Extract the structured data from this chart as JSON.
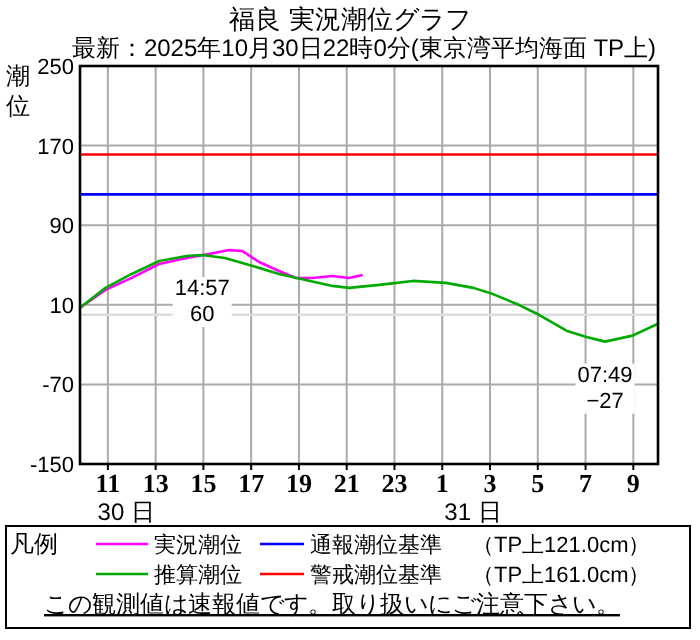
{
  "chart_data": {
    "type": "line",
    "title": "福良 実況潮位グラフ",
    "subtitle": "最新：2025年10月30日22時0分(東京湾平均海面 TP上)",
    "ylabel": "潮位",
    "legend_title": "凡例",
    "xlim": [
      "2025-10-30T09:50",
      "2025-10-31T10:02"
    ],
    "ylim": [
      -150,
      250
    ],
    "xticks": [
      {
        "value": "2025-10-30T11:00",
        "label": "11"
      },
      {
        "value": "2025-10-30T13:00",
        "label": "13"
      },
      {
        "value": "2025-10-30T15:00",
        "label": "15"
      },
      {
        "value": "2025-10-30T17:00",
        "label": "17"
      },
      {
        "value": "2025-10-30T19:00",
        "label": "19"
      },
      {
        "value": "2025-10-30T21:00",
        "label": "21"
      },
      {
        "value": "2025-10-30T23:00",
        "label": "23"
      },
      {
        "value": "2025-10-31T01:00",
        "label": "1"
      },
      {
        "value": "2025-10-31T03:00",
        "label": "3"
      },
      {
        "value": "2025-10-31T05:00",
        "label": "5"
      },
      {
        "value": "2025-10-31T07:00",
        "label": "7"
      },
      {
        "value": "2025-10-31T09:00",
        "label": "9"
      }
    ],
    "yticks": [
      -150,
      -70,
      10,
      90,
      170,
      250
    ],
    "grid": true,
    "legend": "bottom",
    "series": [
      {
        "name": "実況潮位",
        "color": "#ff00ff",
        "x": [
          "2025-10-30T09:50",
          "2025-10-30T10:54",
          "2025-10-30T12:00",
          "2025-10-30T13:09",
          "2025-10-30T14:18",
          "2025-10-30T15:14",
          "2025-10-30T16:05",
          "2025-10-30T16:38",
          "2025-10-30T17:20",
          "2025-10-30T18:10",
          "2025-10-30T18:52",
          "2025-10-30T19:34",
          "2025-10-30T20:24",
          "2025-10-30T21:06",
          "2025-10-30T21:40"
        ],
        "values": [
          7,
          25,
          37,
          51,
          57,
          61,
          65,
          64,
          53,
          44,
          37,
          37,
          39,
          37,
          40
        ]
      },
      {
        "name": "推算潮位",
        "color": "#00aa00",
        "x": [
          "2025-10-30T09:50",
          "2025-10-30T10:54",
          "2025-10-30T12:00",
          "2025-10-30T13:09",
          "2025-10-30T14:18",
          "2025-10-30T14:57",
          "2025-10-30T15:54",
          "2025-10-30T17:04",
          "2025-10-30T18:10",
          "2025-10-30T19:17",
          "2025-10-30T20:24",
          "2025-10-30T21:06",
          "2025-10-30T22:22",
          "2025-10-30T23:46",
          "2025-10-31T01:09",
          "2025-10-31T02:18",
          "2025-10-31T03:06",
          "2025-10-31T04:12",
          "2025-10-31T05:03",
          "2025-10-31T06:12",
          "2025-10-31T07:00",
          "2025-10-31T07:49",
          "2025-10-31T08:58",
          "2025-10-31T10:02"
        ],
        "values": [
          7,
          27,
          41,
          54,
          59,
          60,
          57,
          49,
          41,
          35,
          29,
          27,
          30,
          34,
          32,
          27,
          21,
          10,
          0,
          -16,
          -22,
          -27,
          -21,
          -9
        ]
      }
    ],
    "ref_lines": [
      {
        "axis": "y",
        "value": 121,
        "label": "通報潮位基準",
        "color": "#0000ff"
      },
      {
        "axis": "y",
        "value": 161,
        "label": "警戒潮位基準",
        "color": "#ff0000"
      },
      {
        "axis": "y",
        "value": 0,
        "color": "#dddddd"
      }
    ],
    "annotations": [
      "30 日",
      "31 日",
      "（TP上121.0cm）",
      "（TP上161.0cm）",
      "この観測値は速報値です。取り扱いにご注意下さい。",
      {
        "text": "14:57\n60",
        "x": "2025-10-30T14:57",
        "y": 60
      },
      {
        "text": "07:49\n−27",
        "x": "2025-10-31T07:49",
        "y": -27
      }
    ]
  }
}
